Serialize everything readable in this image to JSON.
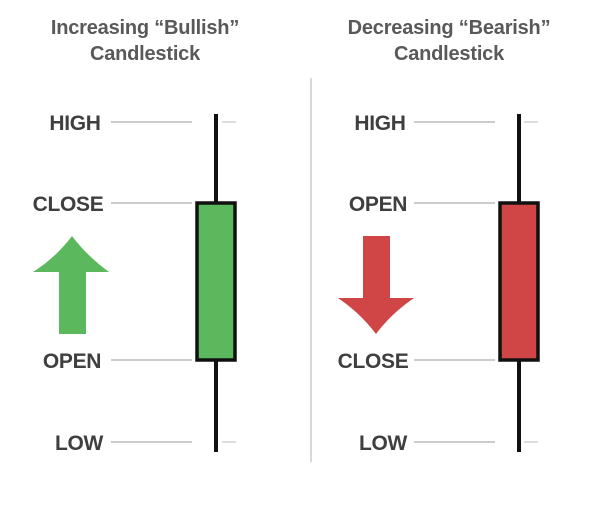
{
  "panels": [
    {
      "title_line1": "Increasing “Bullish”",
      "title_line2": "Candlestick",
      "labels": {
        "high": "HIGH",
        "upper_body": "CLOSE",
        "lower_body": "OPEN",
        "low": "LOW"
      },
      "arrow_direction": "up",
      "arrow_icon": "arrow-up-icon",
      "body_color": "#5cb85c",
      "arrow_color": "#5cb85c"
    },
    {
      "title_line1": "Decreasing “Bearish”",
      "title_line2": "Candlestick",
      "labels": {
        "high": "HIGH",
        "upper_body": "OPEN",
        "lower_body": "CLOSE",
        "low": "LOW"
      },
      "arrow_direction": "down",
      "arrow_icon": "arrow-down-icon",
      "body_color": "#d04545",
      "arrow_color": "#d04545"
    }
  ],
  "colors": {
    "wick": "#111111",
    "body_outline": "#111111",
    "guide_line": "#bbbbbb",
    "divider": "#cccccc",
    "title_text": "#595959",
    "label_text": "#3f3f3f"
  }
}
